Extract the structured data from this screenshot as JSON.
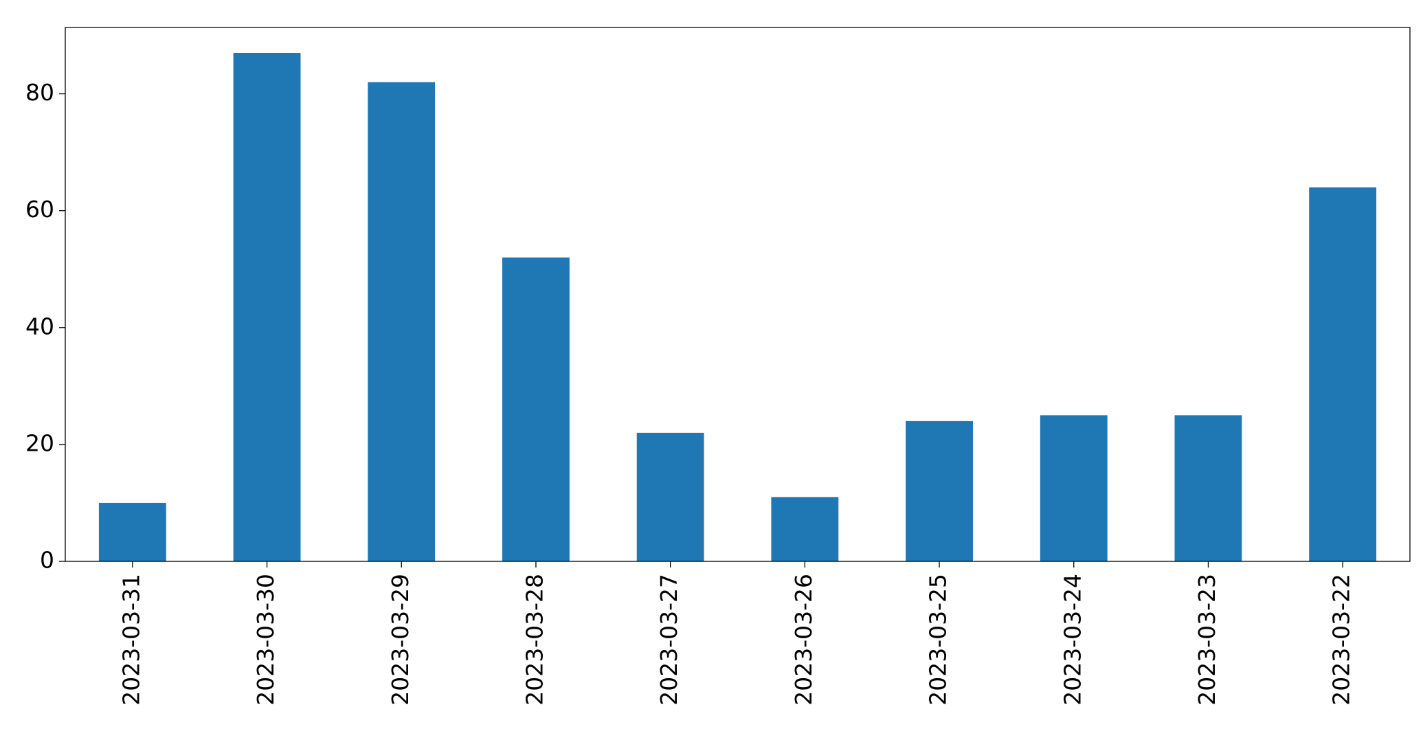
{
  "chart_data": {
    "type": "bar",
    "categories": [
      "2023-03-31",
      "2023-03-30",
      "2023-03-29",
      "2023-03-28",
      "2023-03-27",
      "2023-03-26",
      "2023-03-25",
      "2023-03-24",
      "2023-03-23",
      "2023-03-22"
    ],
    "values": [
      10,
      87,
      82,
      52,
      22,
      11,
      24,
      25,
      25,
      64
    ],
    "color": "#1f77b4",
    "ylim": [
      0,
      91.35
    ],
    "yticks": [
      0,
      20,
      40,
      60,
      80
    ],
    "grid": false
  }
}
